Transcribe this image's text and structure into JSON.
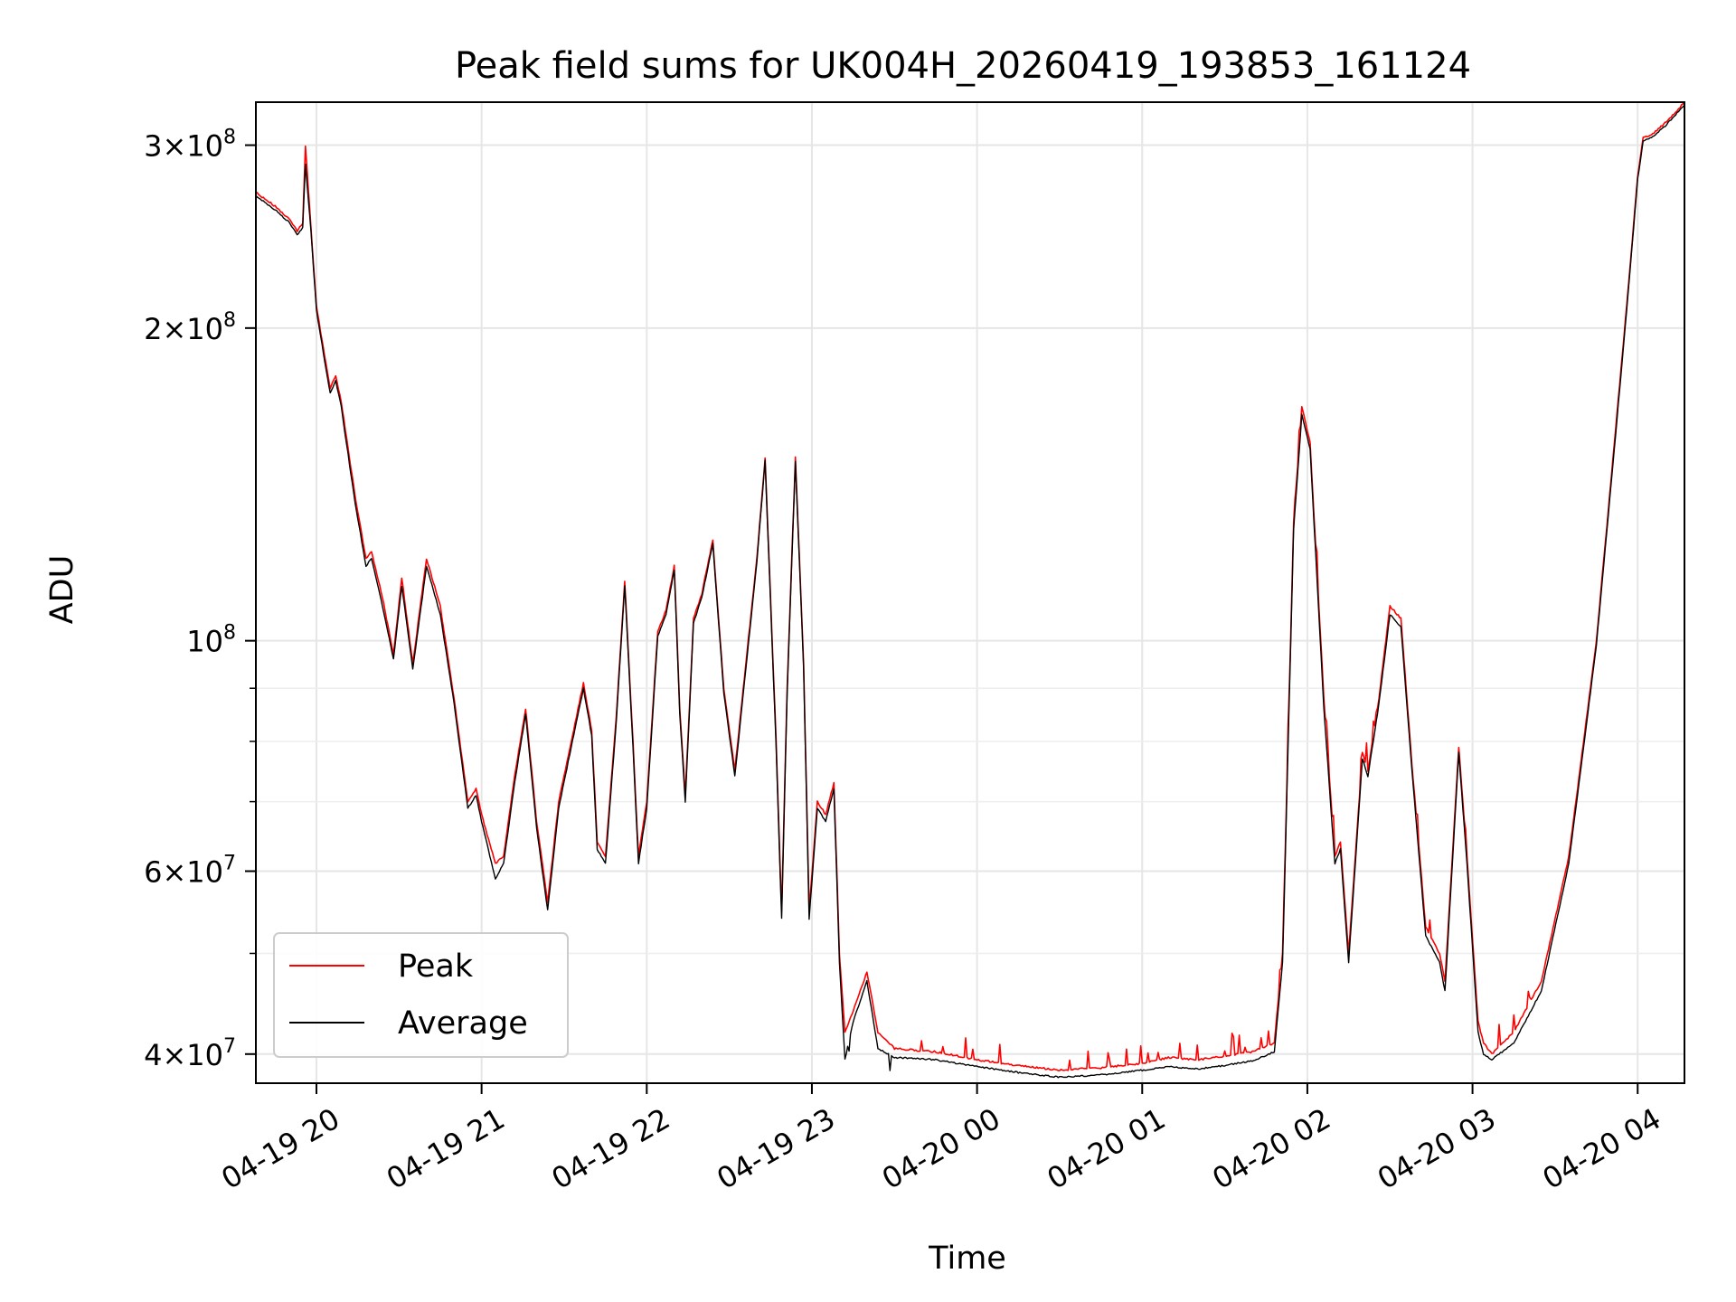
{
  "chart_data": {
    "type": "line",
    "title": "Peak field sums for UK004H_20260419_193853_161124",
    "xlabel": "Time",
    "ylabel": "ADU",
    "y_scale": "log",
    "grid": true,
    "legend_position": "lower-left",
    "xlim": [
      "2026-04-19 19:38",
      "2026-04-20 04:17"
    ],
    "ylim": [
      37500000,
      330000000
    ],
    "x_ticks": [
      {
        "t": "2026-04-19 20:00",
        "label": "04-19 20"
      },
      {
        "t": "2026-04-19 21:00",
        "label": "04-19 21"
      },
      {
        "t": "2026-04-19 22:00",
        "label": "04-19 22"
      },
      {
        "t": "2026-04-19 23:00",
        "label": "04-19 23"
      },
      {
        "t": "2026-04-20 00:00",
        "label": "04-20 00"
      },
      {
        "t": "2026-04-20 01:00",
        "label": "04-20 01"
      },
      {
        "t": "2026-04-20 02:00",
        "label": "04-20 02"
      },
      {
        "t": "2026-04-20 03:00",
        "label": "04-20 03"
      },
      {
        "t": "2026-04-20 04:00",
        "label": "04-20 04"
      }
    ],
    "y_major_ticks": [
      {
        "v": 40000000,
        "mant": "4",
        "exp": "7"
      },
      {
        "v": 60000000,
        "mant": "6",
        "exp": "7"
      },
      {
        "v": 100000000,
        "mant": "",
        "exp": "8"
      },
      {
        "v": 200000000,
        "mant": "2",
        "exp": "8"
      },
      {
        "v": 300000000,
        "mant": "3",
        "exp": "8"
      }
    ],
    "y_minor_ticks": [
      50000000,
      70000000,
      80000000,
      90000000
    ],
    "series": [
      {
        "name": "Peak",
        "color": "#ff0000",
        "noise": "spiky",
        "points": [
          [
            "2026-04-19 19:38",
            270000000
          ],
          [
            "2026-04-19 19:45",
            262000000
          ],
          [
            "2026-04-19 19:50",
            255000000
          ],
          [
            "2026-04-19 19:53",
            248000000
          ],
          [
            "2026-04-19 19:55",
            252000000
          ],
          [
            "2026-04-19 19:56",
            300000000
          ],
          [
            "2026-04-19 19:58",
            250000000
          ],
          [
            "2026-04-19 20:00",
            210000000
          ],
          [
            "2026-04-19 20:03",
            188000000
          ],
          [
            "2026-04-19 20:05",
            175000000
          ],
          [
            "2026-04-19 20:07",
            180000000
          ],
          [
            "2026-04-19 20:09",
            170000000
          ],
          [
            "2026-04-19 20:14",
            138000000
          ],
          [
            "2026-04-19 20:18",
            120000000
          ],
          [
            "2026-04-19 20:20",
            122000000
          ],
          [
            "2026-04-19 20:24",
            110000000
          ],
          [
            "2026-04-19 20:28",
            97000000
          ],
          [
            "2026-04-19 20:31",
            115000000
          ],
          [
            "2026-04-19 20:35",
            95000000
          ],
          [
            "2026-04-19 20:40",
            120000000
          ],
          [
            "2026-04-19 20:45",
            108000000
          ],
          [
            "2026-04-19 20:50",
            88000000
          ],
          [
            "2026-04-19 20:55",
            70000000
          ],
          [
            "2026-04-19 20:58",
            72000000
          ],
          [
            "2026-04-19 21:00",
            68000000
          ],
          [
            "2026-04-19 21:05",
            61000000
          ],
          [
            "2026-04-19 21:08",
            62000000
          ],
          [
            "2026-04-19 21:12",
            74000000
          ],
          [
            "2026-04-19 21:16",
            86000000
          ],
          [
            "2026-04-19 21:20",
            67000000
          ],
          [
            "2026-04-19 21:24",
            56000000
          ],
          [
            "2026-04-19 21:28",
            70000000
          ],
          [
            "2026-04-19 21:33",
            81000000
          ],
          [
            "2026-04-19 21:37",
            91000000
          ],
          [
            "2026-04-19 21:40",
            82000000
          ],
          [
            "2026-04-19 21:42",
            64000000
          ],
          [
            "2026-04-19 21:45",
            62000000
          ],
          [
            "2026-04-19 21:49",
            85000000
          ],
          [
            "2026-04-19 21:52",
            114000000
          ],
          [
            "2026-04-19 21:55",
            80000000
          ],
          [
            "2026-04-19 21:57",
            62000000
          ],
          [
            "2026-04-19 22:00",
            70000000
          ],
          [
            "2026-04-19 22:04",
            102000000
          ],
          [
            "2026-04-19 22:07",
            107000000
          ],
          [
            "2026-04-19 22:10",
            118000000
          ],
          [
            "2026-04-19 22:12",
            86000000
          ],
          [
            "2026-04-19 22:14",
            71000000
          ],
          [
            "2026-04-19 22:17",
            105000000
          ],
          [
            "2026-04-19 22:20",
            111000000
          ],
          [
            "2026-04-19 22:24",
            125000000
          ],
          [
            "2026-04-19 22:28",
            90000000
          ],
          [
            "2026-04-19 22:32",
            75000000
          ],
          [
            "2026-04-19 22:36",
            95000000
          ],
          [
            "2026-04-19 22:40",
            120000000
          ],
          [
            "2026-04-19 22:43",
            150000000
          ],
          [
            "2026-04-19 22:47",
            80000000
          ],
          [
            "2026-04-19 22:49",
            55000000
          ],
          [
            "2026-04-19 22:51",
            90000000
          ],
          [
            "2026-04-19 22:54",
            150000000
          ],
          [
            "2026-04-19 22:57",
            95000000
          ],
          [
            "2026-04-19 22:59",
            55000000
          ],
          [
            "2026-04-19 23:02",
            70000000
          ],
          [
            "2026-04-19 23:05",
            68000000
          ],
          [
            "2026-04-19 23:08",
            73000000
          ],
          [
            "2026-04-19 23:10",
            50000000
          ],
          [
            "2026-04-19 23:12",
            42000000
          ],
          [
            "2026-04-19 23:15",
            44000000
          ],
          [
            "2026-04-19 23:20",
            48000000
          ],
          [
            "2026-04-19 23:24",
            42000000
          ],
          [
            "2026-04-19 23:30",
            40500000
          ],
          [
            "2026-04-19 23:45",
            40200000
          ],
          [
            "2026-04-20 00:00",
            39500000
          ],
          [
            "2026-04-20 00:15",
            39000000
          ],
          [
            "2026-04-20 00:30",
            38600000
          ],
          [
            "2026-04-20 00:45",
            38800000
          ],
          [
            "2026-04-20 01:00",
            39200000
          ],
          [
            "2026-04-20 01:10",
            39700000
          ],
          [
            "2026-04-20 01:20",
            39500000
          ],
          [
            "2026-04-20 01:30",
            39800000
          ],
          [
            "2026-04-20 01:40",
            40200000
          ],
          [
            "2026-04-20 01:48",
            41000000
          ],
          [
            "2026-04-20 01:51",
            50000000
          ],
          [
            "2026-04-20 01:55",
            130000000
          ],
          [
            "2026-04-20 01:58",
            168000000
          ],
          [
            "2026-04-20 02:01",
            155000000
          ],
          [
            "2026-04-20 02:06",
            88000000
          ],
          [
            "2026-04-20 02:10",
            62000000
          ],
          [
            "2026-04-20 02:12",
            64000000
          ],
          [
            "2026-04-20 02:15",
            50000000
          ],
          [
            "2026-04-20 02:20",
            78000000
          ],
          [
            "2026-04-20 02:22",
            75000000
          ],
          [
            "2026-04-20 02:26",
            88000000
          ],
          [
            "2026-04-20 02:30",
            108000000
          ],
          [
            "2026-04-20 02:34",
            105000000
          ],
          [
            "2026-04-20 02:38",
            76000000
          ],
          [
            "2026-04-20 02:43",
            53000000
          ],
          [
            "2026-04-20 02:48",
            50000000
          ],
          [
            "2026-04-20 02:50",
            47000000
          ],
          [
            "2026-04-20 02:55",
            79000000
          ],
          [
            "2026-04-20 02:58",
            62000000
          ],
          [
            "2026-04-20 03:02",
            43000000
          ],
          [
            "2026-04-20 03:04",
            41000000
          ],
          [
            "2026-04-20 03:07",
            40000000
          ],
          [
            "2026-04-20 03:15",
            42000000
          ],
          [
            "2026-04-20 03:25",
            47000000
          ],
          [
            "2026-04-20 03:35",
            62000000
          ],
          [
            "2026-04-20 03:45",
            100000000
          ],
          [
            "2026-04-20 03:52",
            160000000
          ],
          [
            "2026-04-20 03:56",
            210000000
          ],
          [
            "2026-04-20 04:00",
            280000000
          ],
          [
            "2026-04-20 04:02",
            305000000
          ],
          [
            "2026-04-20 04:05",
            307000000
          ],
          [
            "2026-04-20 04:10",
            315000000
          ],
          [
            "2026-04-20 04:17",
            330000000
          ]
        ]
      },
      {
        "name": "Average",
        "color": "#000000",
        "noise": "fine",
        "points": [
          [
            "2026-04-19 19:38",
            268000000
          ],
          [
            "2026-04-19 19:45",
            260000000
          ],
          [
            "2026-04-19 19:50",
            253000000
          ],
          [
            "2026-04-19 19:53",
            246000000
          ],
          [
            "2026-04-19 19:55",
            250000000
          ],
          [
            "2026-04-19 19:56",
            288000000
          ],
          [
            "2026-04-19 19:58",
            248000000
          ],
          [
            "2026-04-19 20:00",
            208000000
          ],
          [
            "2026-04-19 20:03",
            186000000
          ],
          [
            "2026-04-19 20:05",
            173000000
          ],
          [
            "2026-04-19 20:07",
            178000000
          ],
          [
            "2026-04-19 20:09",
            168000000
          ],
          [
            "2026-04-19 20:14",
            136000000
          ],
          [
            "2026-04-19 20:18",
            118000000
          ],
          [
            "2026-04-19 20:20",
            120000000
          ],
          [
            "2026-04-19 20:24",
            108000000
          ],
          [
            "2026-04-19 20:28",
            96000000
          ],
          [
            "2026-04-19 20:31",
            113000000
          ],
          [
            "2026-04-19 20:35",
            94000000
          ],
          [
            "2026-04-19 20:40",
            118000000
          ],
          [
            "2026-04-19 20:45",
            106000000
          ],
          [
            "2026-04-19 20:50",
            87000000
          ],
          [
            "2026-04-19 20:55",
            69000000
          ],
          [
            "2026-04-19 20:58",
            71000000
          ],
          [
            "2026-04-19 21:00",
            67000000
          ],
          [
            "2026-04-19 21:05",
            59000000
          ],
          [
            "2026-04-19 21:08",
            61000000
          ],
          [
            "2026-04-19 21:12",
            73000000
          ],
          [
            "2026-04-19 21:16",
            85000000
          ],
          [
            "2026-04-19 21:20",
            66000000
          ],
          [
            "2026-04-19 21:24",
            55000000
          ],
          [
            "2026-04-19 21:28",
            69000000
          ],
          [
            "2026-04-19 21:33",
            80000000
          ],
          [
            "2026-04-19 21:37",
            90000000
          ],
          [
            "2026-04-19 21:40",
            81000000
          ],
          [
            "2026-04-19 21:42",
            63000000
          ],
          [
            "2026-04-19 21:45",
            61000000
          ],
          [
            "2026-04-19 21:49",
            84000000
          ],
          [
            "2026-04-19 21:52",
            113000000
          ],
          [
            "2026-04-19 21:55",
            79000000
          ],
          [
            "2026-04-19 21:57",
            61000000
          ],
          [
            "2026-04-19 22:00",
            69000000
          ],
          [
            "2026-04-19 22:04",
            101000000
          ],
          [
            "2026-04-19 22:07",
            106000000
          ],
          [
            "2026-04-19 22:10",
            117000000
          ],
          [
            "2026-04-19 22:12",
            85000000
          ],
          [
            "2026-04-19 22:14",
            70000000
          ],
          [
            "2026-04-19 22:17",
            104000000
          ],
          [
            "2026-04-19 22:20",
            110000000
          ],
          [
            "2026-04-19 22:24",
            124000000
          ],
          [
            "2026-04-19 22:28",
            89000000
          ],
          [
            "2026-04-19 22:32",
            74000000
          ],
          [
            "2026-04-19 22:36",
            94000000
          ],
          [
            "2026-04-19 22:40",
            119000000
          ],
          [
            "2026-04-19 22:43",
            149000000
          ],
          [
            "2026-04-19 22:47",
            79000000
          ],
          [
            "2026-04-19 22:49",
            54000000
          ],
          [
            "2026-04-19 22:51",
            89000000
          ],
          [
            "2026-04-19 22:54",
            149000000
          ],
          [
            "2026-04-19 22:57",
            94000000
          ],
          [
            "2026-04-19 22:59",
            54000000
          ],
          [
            "2026-04-19 23:02",
            69000000
          ],
          [
            "2026-04-19 23:05",
            67000000
          ],
          [
            "2026-04-19 23:08",
            72000000
          ],
          [
            "2026-04-19 23:10",
            49000000
          ],
          [
            "2026-04-19 23:12",
            39500000
          ],
          [
            "2026-04-19 23:15",
            43000000
          ],
          [
            "2026-04-19 23:20",
            47000000
          ],
          [
            "2026-04-19 23:24",
            40500000
          ],
          [
            "2026-04-19 23:30",
            39700000
          ],
          [
            "2026-04-19 23:45",
            39500000
          ],
          [
            "2026-04-20 00:00",
            38900000
          ],
          [
            "2026-04-20 00:15",
            38400000
          ],
          [
            "2026-04-20 00:30",
            38000000
          ],
          [
            "2026-04-20 00:45",
            38200000
          ],
          [
            "2026-04-20 01:00",
            38600000
          ],
          [
            "2026-04-20 01:10",
            38900000
          ],
          [
            "2026-04-20 01:20",
            38700000
          ],
          [
            "2026-04-20 01:30",
            39000000
          ],
          [
            "2026-04-20 01:40",
            39400000
          ],
          [
            "2026-04-20 01:48",
            40200000
          ],
          [
            "2026-04-20 01:51",
            49000000
          ],
          [
            "2026-04-20 01:55",
            128000000
          ],
          [
            "2026-04-20 01:58",
            165000000
          ],
          [
            "2026-04-20 02:01",
            153000000
          ],
          [
            "2026-04-20 02:06",
            86000000
          ],
          [
            "2026-04-20 02:10",
            61000000
          ],
          [
            "2026-04-20 02:12",
            63000000
          ],
          [
            "2026-04-20 02:15",
            49000000
          ],
          [
            "2026-04-20 02:20",
            77000000
          ],
          [
            "2026-04-20 02:22",
            74000000
          ],
          [
            "2026-04-20 02:26",
            87000000
          ],
          [
            "2026-04-20 02:30",
            106000000
          ],
          [
            "2026-04-20 02:34",
            103000000
          ],
          [
            "2026-04-20 02:38",
            75000000
          ],
          [
            "2026-04-20 02:43",
            52000000
          ],
          [
            "2026-04-20 02:48",
            49000000
          ],
          [
            "2026-04-20 02:50",
            46000000
          ],
          [
            "2026-04-20 02:55",
            78000000
          ],
          [
            "2026-04-20 02:58",
            61000000
          ],
          [
            "2026-04-20 03:02",
            42000000
          ],
          [
            "2026-04-20 03:04",
            40000000
          ],
          [
            "2026-04-20 03:07",
            39500000
          ],
          [
            "2026-04-20 03:15",
            41000000
          ],
          [
            "2026-04-20 03:25",
            46000000
          ],
          [
            "2026-04-20 03:35",
            61000000
          ],
          [
            "2026-04-20 03:45",
            99000000
          ],
          [
            "2026-04-20 03:52",
            158000000
          ],
          [
            "2026-04-20 03:56",
            208000000
          ],
          [
            "2026-04-20 04:00",
            278000000
          ],
          [
            "2026-04-20 04:02",
            303000000
          ],
          [
            "2026-04-20 04:05",
            305000000
          ],
          [
            "2026-04-20 04:10",
            313000000
          ],
          [
            "2026-04-20 04:17",
            328000000
          ]
        ]
      }
    ]
  }
}
